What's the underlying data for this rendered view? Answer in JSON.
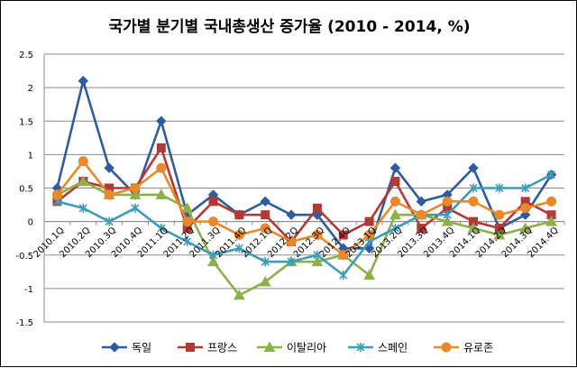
{
  "chart_data": {
    "type": "line",
    "title": "국가별 분기별 국내총생산 증가율 (2010 - 2014,  %)",
    "x": [
      "2010.1Q",
      "2010.2Q",
      "2010.3Q",
      "2010.4Q",
      "2011.1Q",
      "2011.2Q",
      "2011.3Q",
      "2011.4Q",
      "2012.1Q",
      "2012.2Q",
      "2012.3Q",
      "2012.4Q",
      "2013.1Q",
      "2013.2Q",
      "2013.3Q",
      "2013.4Q",
      "2014.1Q",
      "2014.2Q",
      "2014.3Q",
      "2014.4Q"
    ],
    "x_tick_labels": [
      "2010.1Q",
      "2010.2Q",
      "2010.3Q",
      "2010.4Q",
      "2011.1Q",
      "2011.2Q",
      "2011.3Q",
      "2011.4Q",
      "2012.1Q",
      "2012.2Q",
      "2012.3Q",
      "2012.4Q",
      "2013.1Q",
      "2013.2Q",
      "2013.3Q",
      "2013.4Q",
      "2014.1Q",
      "2014.2Q",
      "2014.3Q",
      "2014.4Q"
    ],
    "y_ticks": [
      "2.5",
      "2",
      "1.5",
      "1",
      "0.5",
      "0",
      "-0.5",
      "-1",
      "-1.5"
    ],
    "ylim": [
      -1.5,
      2.5
    ],
    "grid": true,
    "legend_position": "bottom",
    "series": [
      {
        "name": "독일",
        "color": "#2E5C9E",
        "marker": "diamond",
        "values": [
          0.5,
          2.1,
          0.8,
          0.4,
          1.5,
          0.1,
          0.4,
          0.1,
          0.3,
          0.1,
          0.1,
          -0.4,
          -0.4,
          0.8,
          0.3,
          0.4,
          0.8,
          -0.1,
          0.1,
          0.7
        ]
      },
      {
        "name": "프랑스",
        "color": "#B23A36",
        "marker": "square",
        "values": [
          0.3,
          0.6,
          0.5,
          0.5,
          1.1,
          -0.1,
          0.3,
          0.1,
          0.1,
          -0.3,
          0.2,
          -0.2,
          0.0,
          0.6,
          -0.1,
          0.2,
          0.0,
          -0.1,
          0.3,
          0.1
        ]
      },
      {
        "name": "이탈리아",
        "color": "#8DB048",
        "marker": "triangle",
        "values": [
          0.4,
          0.6,
          0.4,
          0.4,
          0.4,
          0.2,
          -0.6,
          -1.1,
          -0.9,
          -0.6,
          -0.6,
          -0.5,
          -0.8,
          0.1,
          0.1,
          0.0,
          -0.1,
          -0.2,
          -0.1,
          0.0
        ]
      },
      {
        "name": "스페인",
        "color": "#3D9DB8",
        "marker": "star",
        "values": [
          0.3,
          0.2,
          0.0,
          0.2,
          -0.1,
          -0.3,
          -0.5,
          -0.4,
          -0.6,
          -0.6,
          -0.5,
          -0.8,
          -0.3,
          -0.1,
          0.1,
          0.1,
          0.5,
          0.5,
          0.5,
          0.7
        ]
      },
      {
        "name": "유로존",
        "color": "#E7892C",
        "marker": "circle",
        "values": [
          0.4,
          0.9,
          0.4,
          0.5,
          0.8,
          0.0,
          0.0,
          -0.2,
          -0.1,
          -0.3,
          -0.2,
          -0.5,
          -0.2,
          0.3,
          0.1,
          0.3,
          0.3,
          0.1,
          0.2,
          0.3
        ]
      }
    ]
  }
}
